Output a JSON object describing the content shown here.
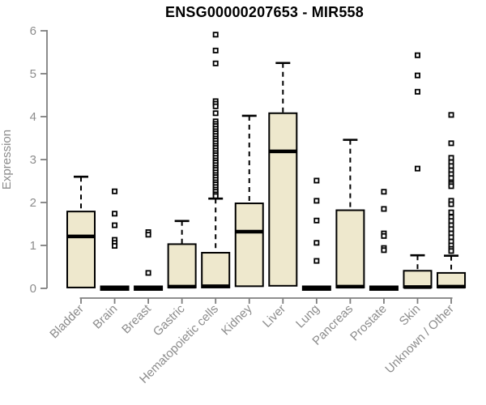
{
  "chart_data": {
    "type": "boxplot",
    "title": "ENSG00000207653 - MIR558",
    "ylabel": "Expression",
    "xlabel": "",
    "ylim": [
      0,
      6
    ],
    "yticks": [
      0,
      1,
      2,
      3,
      4,
      5,
      6
    ],
    "grid": false,
    "legend": false,
    "categories": [
      "Bladder",
      "Brain",
      "Breast",
      "Gastric",
      "Hematopoietic cells",
      "Kidney",
      "Liver",
      "Lung",
      "Pancreas",
      "Prostate",
      "Skin",
      "Unknown / Other"
    ],
    "series": [
      {
        "name": "Bladder",
        "q1": 0.02,
        "median": 1.21,
        "q3": 1.79,
        "whisker_low": 0.02,
        "whisker_high": 2.6,
        "outliers": []
      },
      {
        "name": "Brain",
        "q1": 0,
        "median": 0,
        "q3": 0,
        "whisker_low": 0,
        "whisker_high": 0,
        "outliers": [
          2.26,
          1.74,
          1.47,
          1.13,
          1.06,
          0.99
        ]
      },
      {
        "name": "Breast",
        "q1": 0,
        "median": 0,
        "q3": 0,
        "whisker_low": 0,
        "whisker_high": 0,
        "outliers": [
          1.31,
          1.25,
          0.36
        ]
      },
      {
        "name": "Gastric",
        "q1": 0.02,
        "median": 0.04,
        "q3": 1.03,
        "whisker_low": 0.02,
        "whisker_high": 1.57,
        "outliers": []
      },
      {
        "name": "Hematopoietic cells",
        "q1": 0.02,
        "median": 0.05,
        "q3": 0.83,
        "whisker_low": 0.02,
        "whisker_high": 2.09,
        "outliers": [
          5.91,
          5.54,
          5.24,
          4.36,
          4.3,
          4.24,
          4.08,
          3.89,
          3.83,
          3.78,
          3.72,
          3.66,
          3.61,
          3.55,
          3.49,
          3.44,
          3.38,
          3.32,
          3.27,
          3.21,
          3.15,
          3.1,
          3.04,
          2.98,
          2.93,
          2.87,
          2.81,
          2.76,
          2.7,
          2.64,
          2.59,
          2.53,
          2.47,
          2.42,
          2.36,
          2.3,
          2.25,
          2.19,
          2.15
        ]
      },
      {
        "name": "Kidney",
        "q1": 0.05,
        "median": 1.32,
        "q3": 1.98,
        "whisker_low": 0.05,
        "whisker_high": 4.02,
        "outliers": []
      },
      {
        "name": "Liver",
        "q1": 0.06,
        "median": 3.19,
        "q3": 4.08,
        "whisker_low": 0.06,
        "whisker_high": 5.25,
        "outliers": []
      },
      {
        "name": "Lung",
        "q1": 0,
        "median": 0,
        "q3": 0,
        "whisker_low": 0,
        "whisker_high": 0,
        "outliers": [
          2.51,
          2.04,
          1.58,
          1.06,
          0.64
        ]
      },
      {
        "name": "Pancreas",
        "q1": 0.02,
        "median": 0.04,
        "q3": 1.82,
        "whisker_low": 0.02,
        "whisker_high": 3.46,
        "outliers": []
      },
      {
        "name": "Prostate",
        "q1": 0,
        "median": 0,
        "q3": 0,
        "whisker_low": 0,
        "whisker_high": 0,
        "outliers": [
          2.25,
          1.85,
          1.28,
          1.22,
          0.94,
          0.89
        ]
      },
      {
        "name": "Skin",
        "q1": 0.02,
        "median": 0.03,
        "q3": 0.41,
        "whisker_low": 0.02,
        "whisker_high": 0.77,
        "outliers": [
          5.43,
          4.96,
          4.58,
          2.79
        ]
      },
      {
        "name": "Unknown / Other",
        "q1": 0.02,
        "median": 0.04,
        "q3": 0.36,
        "whisker_low": 0.02,
        "whisker_high": 0.76,
        "outliers": [
          4.04,
          3.38,
          3.04,
          2.94,
          2.85,
          2.75,
          2.66,
          2.57,
          2.47,
          2.43,
          2.38,
          2.04,
          1.96,
          1.77,
          1.66,
          1.57,
          1.47,
          1.38,
          1.28,
          1.19,
          1.09,
          1.0,
          0.92,
          0.87
        ]
      }
    ],
    "colors": {
      "background": "#FFFFFF",
      "box_fill": "#EEE8CD",
      "box_border": "#000000",
      "median": "#000000",
      "whisker": "#000000",
      "outlier": "#000000",
      "axis_line": "#7F7F7F",
      "axis_text": "#8C8C8C",
      "title": "#000000"
    }
  }
}
